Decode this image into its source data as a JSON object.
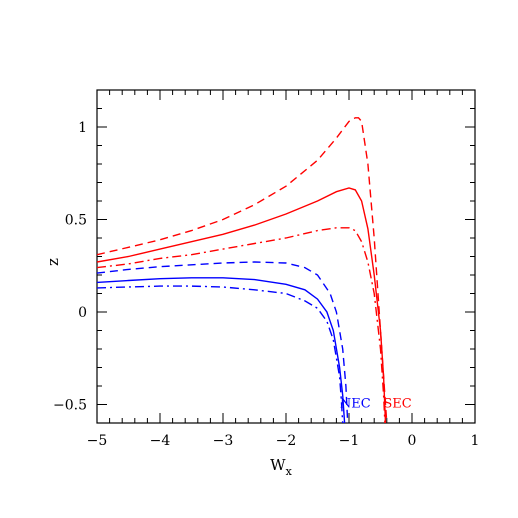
{
  "chart_data": {
    "type": "line",
    "xlabel": "W",
    "xlabel_sub": "x",
    "ylabel": "z",
    "xlim": [
      -5,
      1
    ],
    "ylim": [
      -0.6,
      1.2
    ],
    "xticks": [
      -5,
      -4,
      -3,
      -2,
      -1,
      0,
      1
    ],
    "yticks": [
      -0.5,
      0,
      0.5,
      1
    ],
    "xtick_labels": [
      "−5",
      "−4",
      "−3",
      "−2",
      "−1",
      "0",
      "1"
    ],
    "ytick_labels": [
      "−0.5",
      "0",
      "0.5",
      "1"
    ],
    "grid": false,
    "legend": "none",
    "series": [
      {
        "color": "#ff0000",
        "dash": "dashed",
        "x": [
          -5,
          -4.5,
          -4,
          -3.5,
          -3,
          -2.5,
          -2,
          -1.5,
          -1.2,
          -1,
          -0.9,
          -0.85,
          -0.8,
          -0.7,
          -0.6,
          -0.5,
          -0.45,
          -0.4
        ],
        "y": [
          0.31,
          0.35,
          0.39,
          0.44,
          0.5,
          0.58,
          0.68,
          0.82,
          0.94,
          1.03,
          1.05,
          1.05,
          1.03,
          0.8,
          0.4,
          -0.1,
          -0.35,
          -0.6
        ]
      },
      {
        "color": "#ff0000",
        "dash": "solid",
        "x": [
          -5,
          -4.5,
          -4,
          -3.5,
          -3,
          -2.5,
          -2,
          -1.5,
          -1.2,
          -1,
          -0.9,
          -0.8,
          -0.7,
          -0.6,
          -0.5,
          -0.45,
          -0.42
        ],
        "y": [
          0.27,
          0.3,
          0.34,
          0.38,
          0.42,
          0.47,
          0.53,
          0.6,
          0.65,
          0.67,
          0.66,
          0.6,
          0.45,
          0.2,
          -0.1,
          -0.35,
          -0.6
        ]
      },
      {
        "color": "#ff0000",
        "dash": "dashdot",
        "x": [
          -5,
          -4.5,
          -4,
          -3.5,
          -3,
          -2.5,
          -2,
          -1.5,
          -1.2,
          -1,
          -0.9,
          -0.8,
          -0.7,
          -0.6,
          -0.5,
          -0.45,
          -0.43
        ],
        "y": [
          0.24,
          0.26,
          0.29,
          0.31,
          0.34,
          0.37,
          0.4,
          0.44,
          0.455,
          0.455,
          0.44,
          0.38,
          0.27,
          0.1,
          -0.2,
          -0.45,
          -0.6
        ]
      },
      {
        "color": "#0000ff",
        "dash": "dashed",
        "x": [
          -5,
          -4.5,
          -4,
          -3.5,
          -3,
          -2.5,
          -2,
          -1.7,
          -1.5,
          -1.3,
          -1.2,
          -1.1,
          -1.05,
          -1.02
        ],
        "y": [
          0.21,
          0.23,
          0.245,
          0.255,
          0.265,
          0.27,
          0.265,
          0.24,
          0.2,
          0.1,
          0.0,
          -0.2,
          -0.4,
          -0.6
        ]
      },
      {
        "color": "#0000ff",
        "dash": "solid",
        "x": [
          -5,
          -4.5,
          -4,
          -3.5,
          -3,
          -2.5,
          -2,
          -1.7,
          -1.5,
          -1.35,
          -1.25,
          -1.15,
          -1.1,
          -1.07
        ],
        "y": [
          0.16,
          0.17,
          0.18,
          0.185,
          0.185,
          0.175,
          0.15,
          0.12,
          0.07,
          0.0,
          -0.1,
          -0.3,
          -0.45,
          -0.6
        ]
      },
      {
        "color": "#0000ff",
        "dash": "dashdot",
        "x": [
          -5,
          -4.5,
          -4,
          -3.5,
          -3,
          -2.5,
          -2,
          -1.7,
          -1.5,
          -1.35,
          -1.25,
          -1.15,
          -1.12,
          -1.1
        ],
        "y": [
          0.13,
          0.135,
          0.14,
          0.14,
          0.135,
          0.12,
          0.1,
          0.06,
          0.02,
          -0.05,
          -0.15,
          -0.35,
          -0.48,
          -0.6
        ]
      }
    ],
    "annotations": [
      {
        "text": "NEC",
        "color": "#0000ff",
        "x": -0.9,
        "y": -0.515
      },
      {
        "text": "SEC",
        "color": "#ff0000",
        "x": -0.23,
        "y": -0.515
      }
    ]
  }
}
